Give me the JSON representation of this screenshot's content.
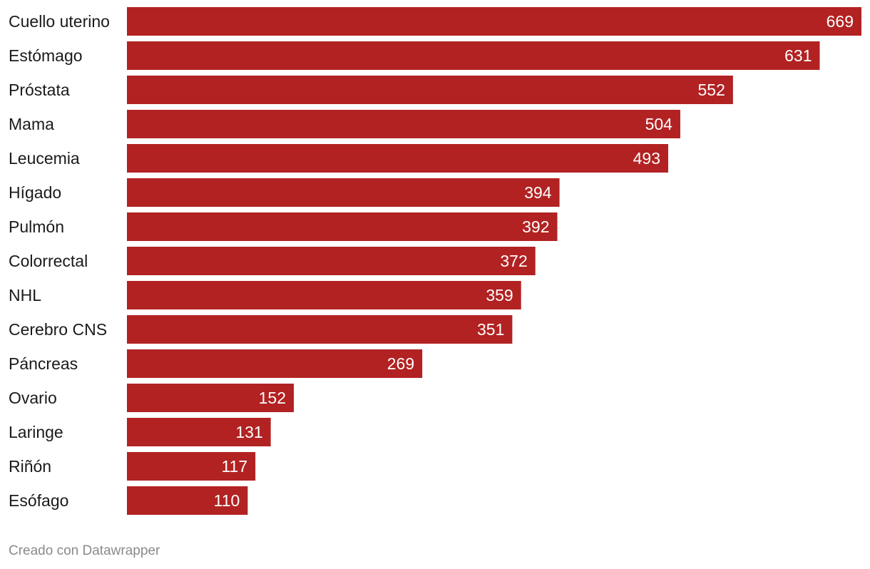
{
  "chart_data": {
    "type": "bar",
    "orientation": "horizontal",
    "title": "",
    "xlabel": "",
    "ylabel": "",
    "categories": [
      "Cuello uterino",
      "Estómago",
      "Próstata",
      "Mama",
      "Leucemia",
      "Hígado",
      "Pulmón",
      "Colorrectal",
      "NHL",
      "Cerebro CNS",
      "Páncreas",
      "Ovario",
      "Laringe",
      "Riñón",
      "Esófago"
    ],
    "values": [
      669,
      631,
      552,
      504,
      493,
      394,
      392,
      372,
      359,
      351,
      269,
      152,
      131,
      117,
      110
    ],
    "xlim": [
      0,
      669
    ],
    "grid": false,
    "legend": "none",
    "value_labels": "inside-end",
    "bar_color": "#b22222"
  },
  "footer": {
    "credit": "Creado con Datawrapper"
  }
}
